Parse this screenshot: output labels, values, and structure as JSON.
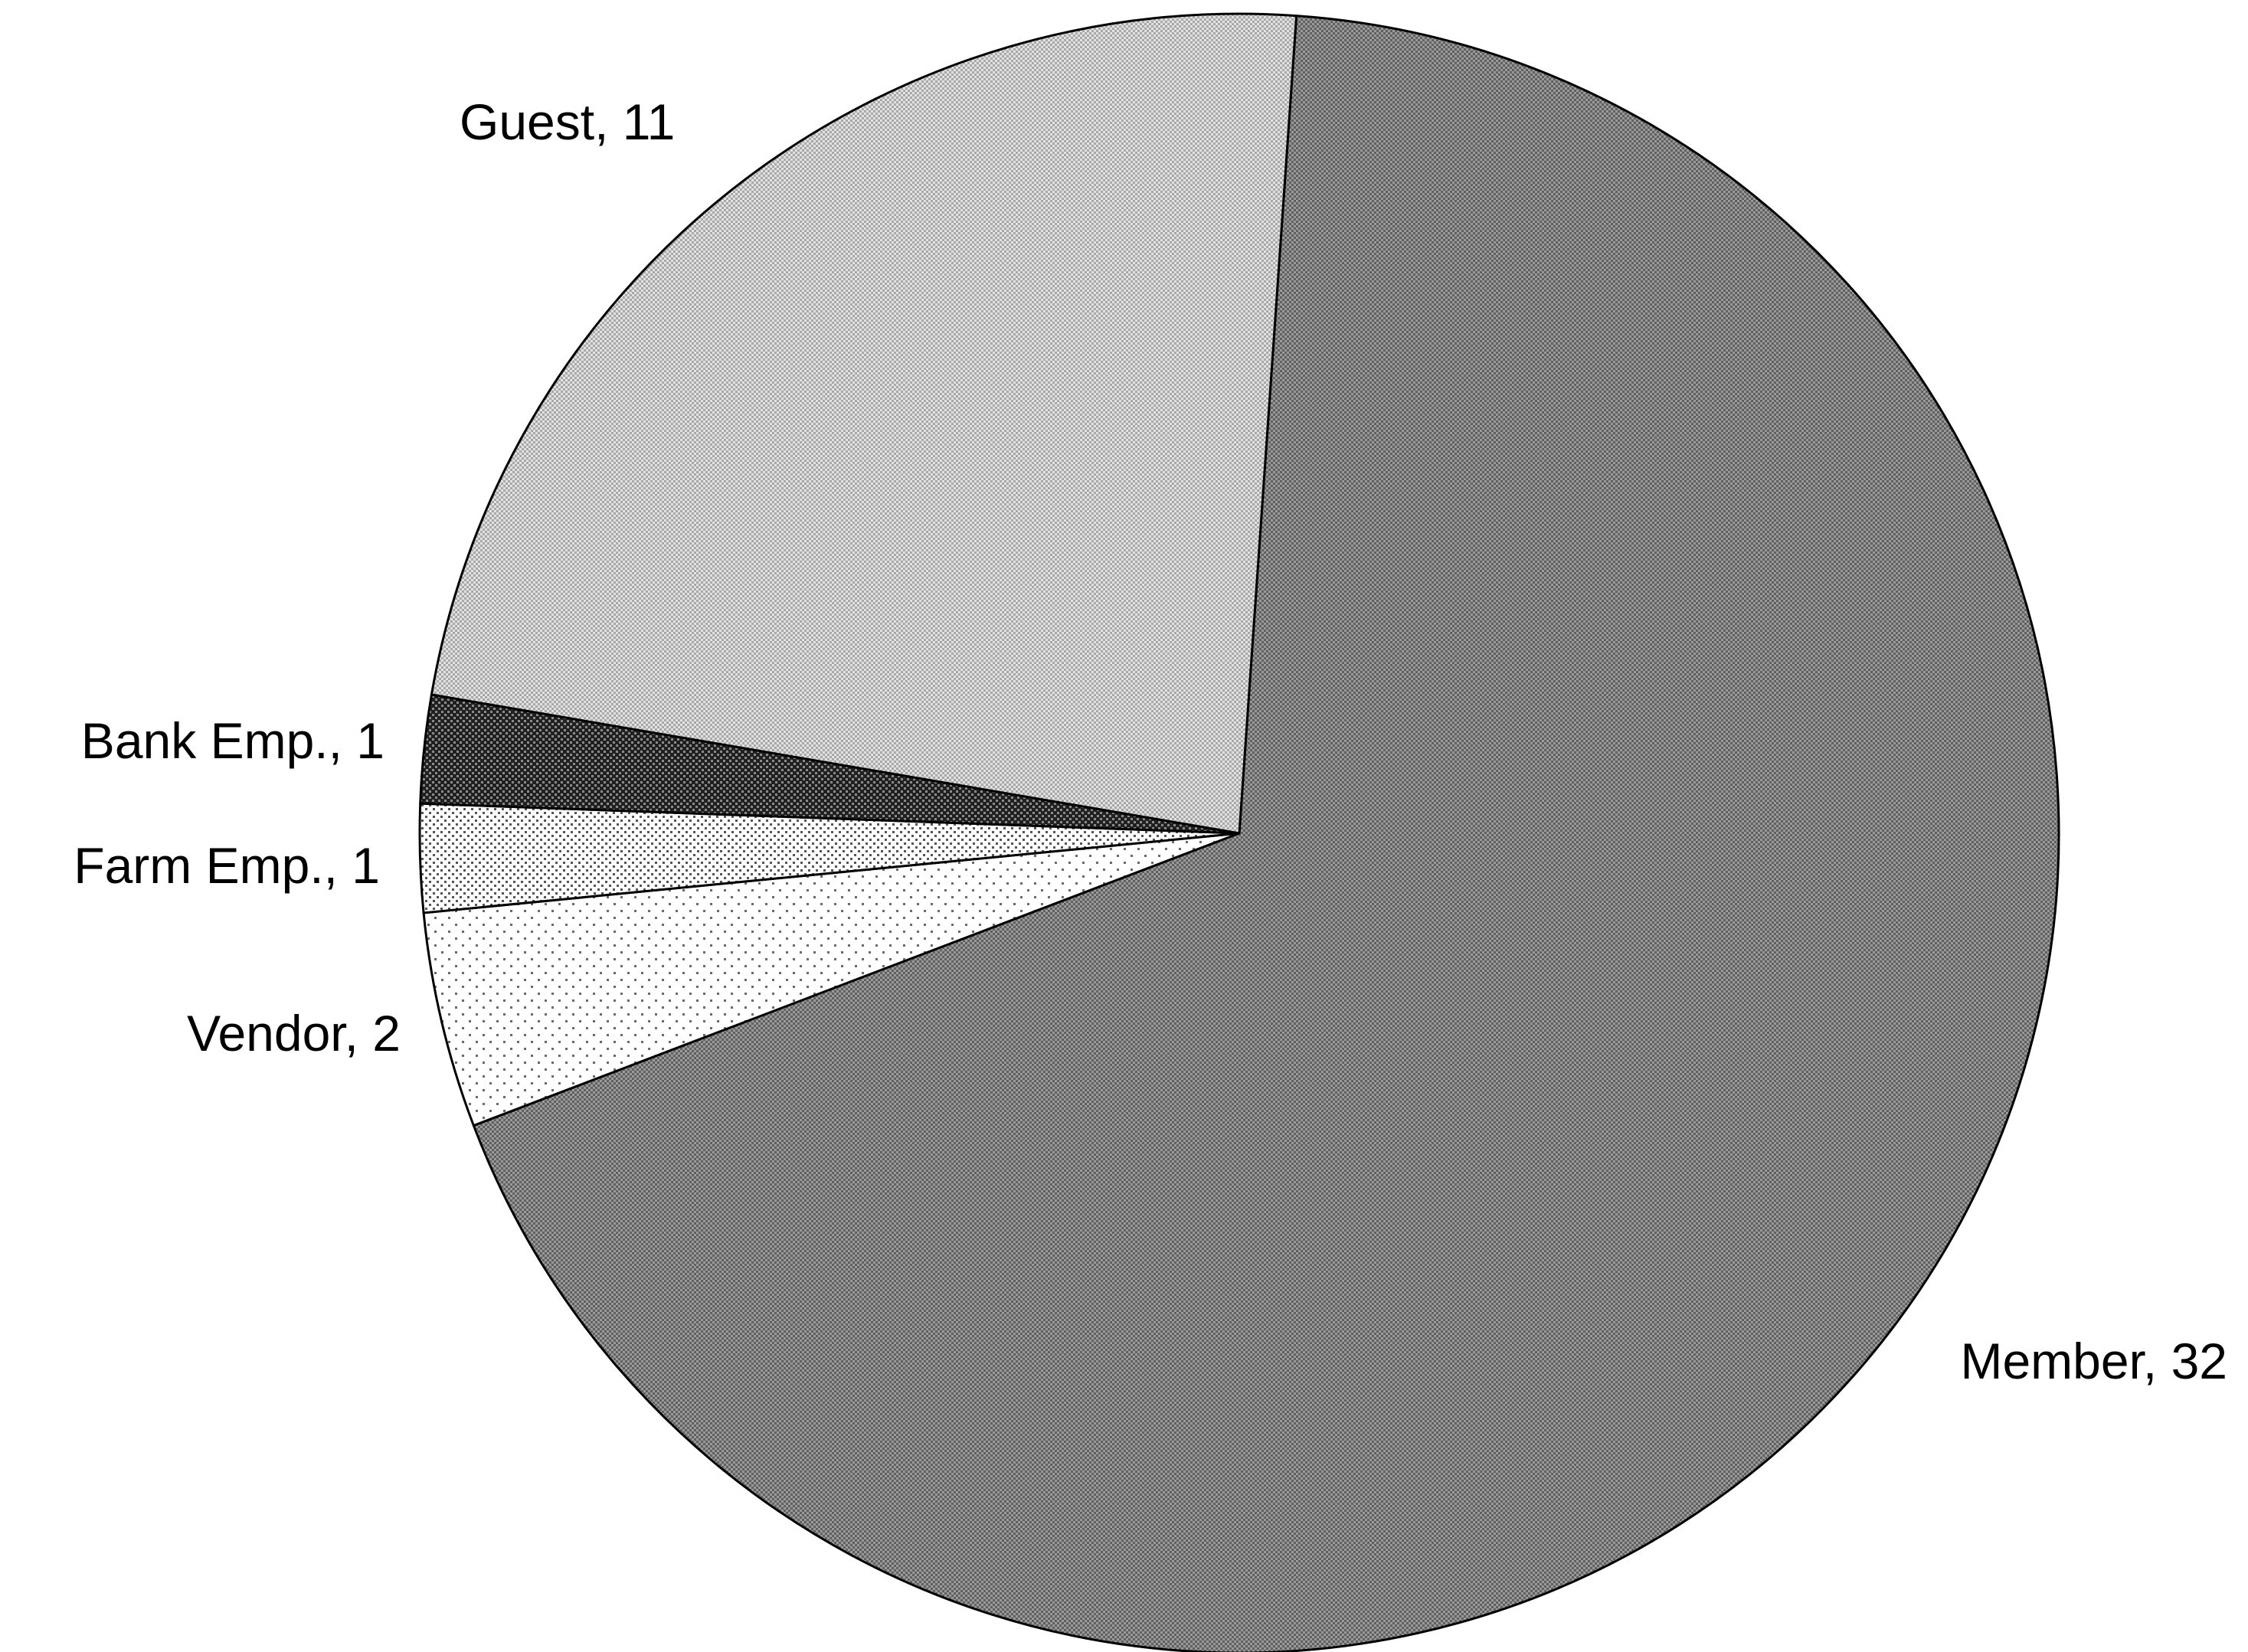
{
  "chart_data": {
    "type": "pie",
    "title": "",
    "slices": [
      {
        "name": "Member",
        "value": 32,
        "label": "Member, 32",
        "color": "#858585",
        "pattern": "fine-dark"
      },
      {
        "name": "Vendor",
        "value": 2,
        "label": "Vendor, 2",
        "color": "#f4f4f4",
        "pattern": "sparse-dots"
      },
      {
        "name": "Farm Emp.",
        "value": 1,
        "label": "Farm Emp., 1",
        "color": "#e6e6e6",
        "pattern": "dense-dots"
      },
      {
        "name": "Bank Emp.",
        "value": 1,
        "label": "Bank Emp., 1",
        "color": "#3c3c3c",
        "pattern": "dark-dots"
      },
      {
        "name": "Guest",
        "value": 11,
        "label": "Guest, 11",
        "color": "#c9c9c9",
        "pattern": "fine-light"
      }
    ],
    "start_angle_deg": 4,
    "direction": "clockwise",
    "legend": "none",
    "data_labels": "outside"
  }
}
